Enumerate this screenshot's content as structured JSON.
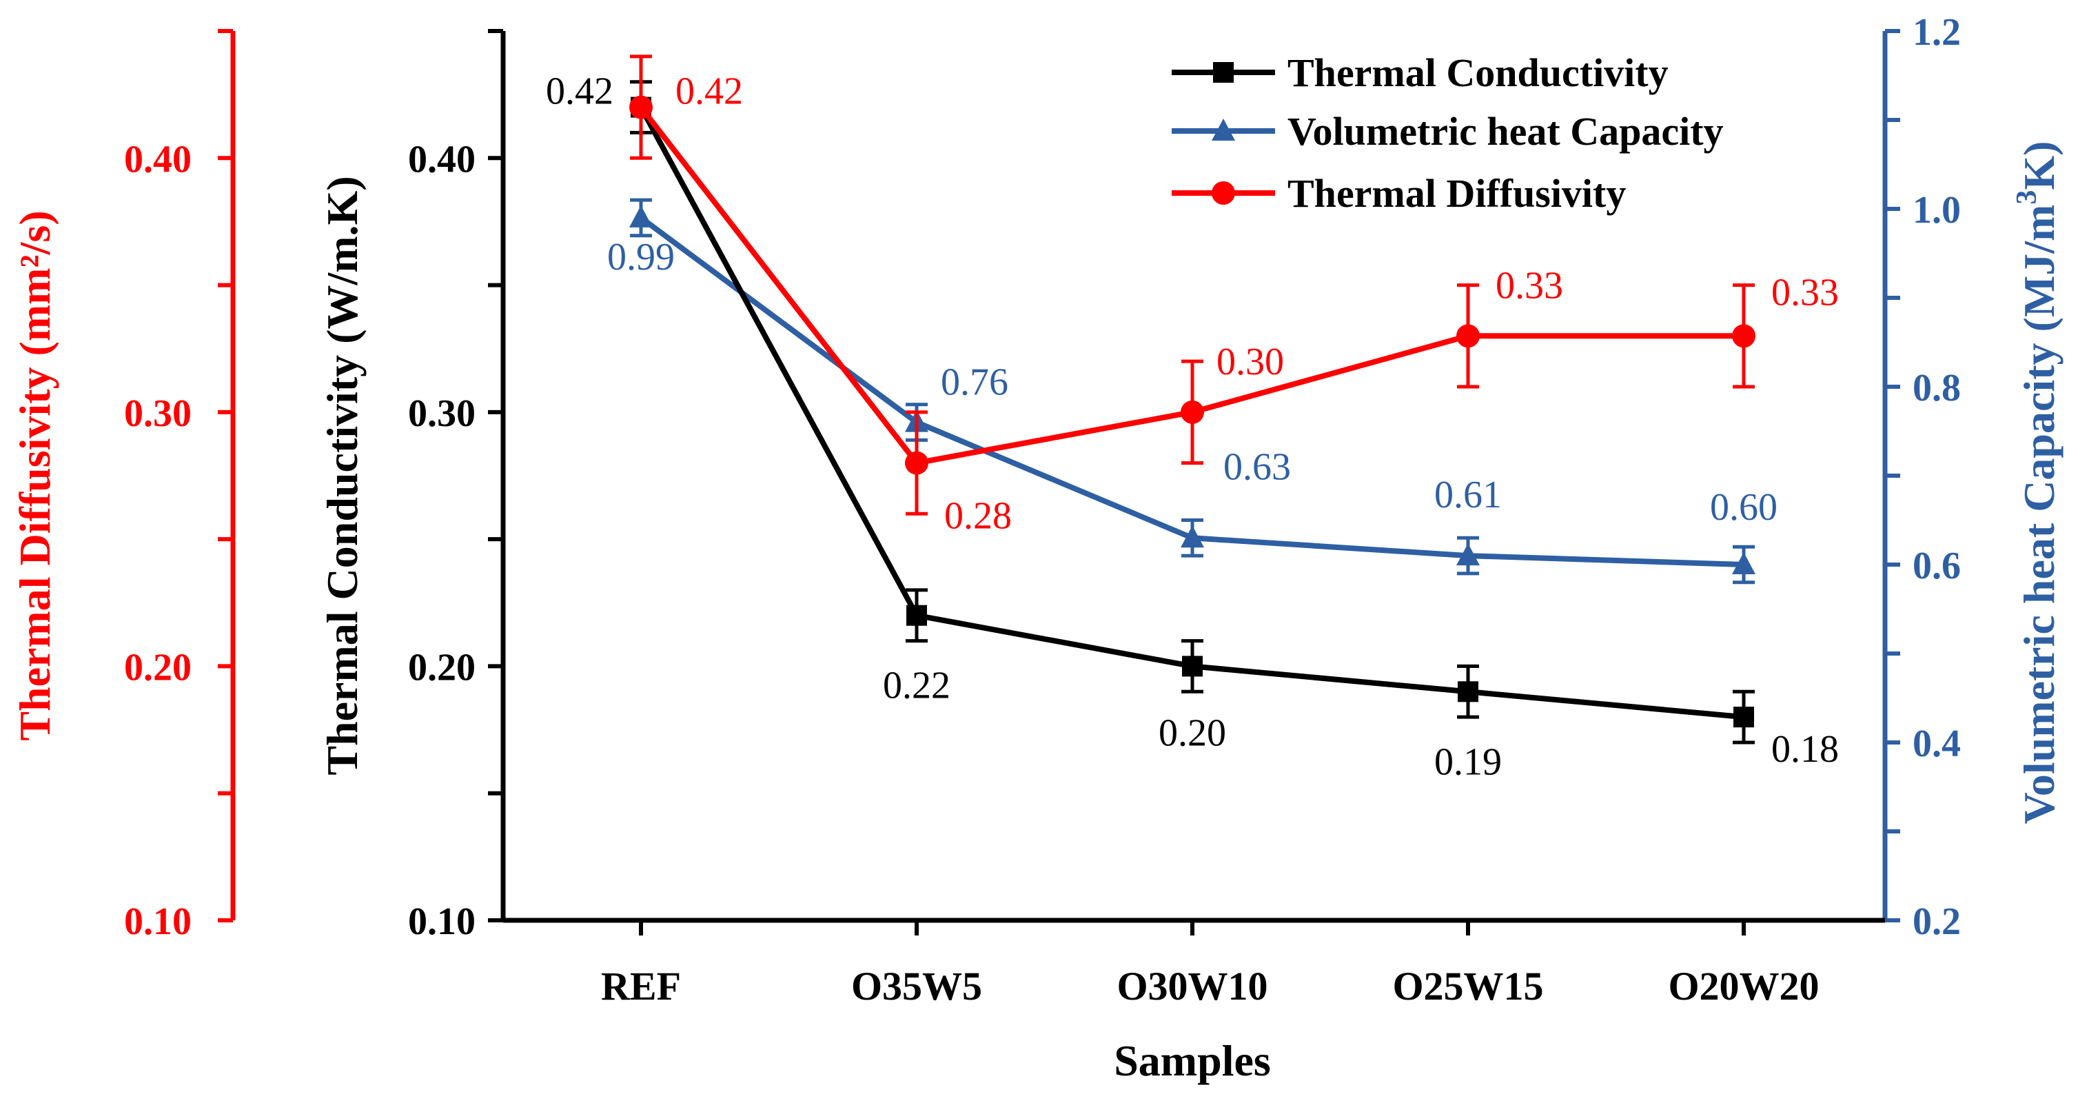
{
  "chart_data": {
    "type": "line",
    "xlabel": "Samples",
    "categories": [
      "REF",
      "O35W5",
      "O30W10",
      "O25W15",
      "O20W20"
    ],
    "axes": {
      "left_outer": {
        "label": "Thermal Diffusivity (mm²/s)",
        "range": [
          0.1,
          0.45
        ],
        "ticks": [
          "0.10",
          "0.20",
          "0.30",
          "0.40"
        ],
        "tick_values": [
          0.1,
          0.2,
          0.3,
          0.4
        ],
        "color": "#ff0000"
      },
      "left_inner": {
        "label": "Thermal Conductivity (W/m.K)",
        "range": [
          0.1,
          0.45
        ],
        "ticks": [
          "0.10",
          "0.20",
          "0.30",
          "0.40"
        ],
        "tick_values": [
          0.1,
          0.2,
          0.3,
          0.4
        ],
        "color": "#000000"
      },
      "right": {
        "label_prefix": "Volumetric heat Capacity (MJ/m",
        "label_sup": "3",
        "label_suffix": "K)",
        "range": [
          0.2,
          1.2
        ],
        "ticks": [
          "0.2",
          "0.4",
          "0.6",
          "0.8",
          "1.0",
          "1.2"
        ],
        "tick_values": [
          0.2,
          0.4,
          0.6,
          0.8,
          1.0,
          1.2
        ],
        "color": "#2e5fa3"
      }
    },
    "series": [
      {
        "name": "Thermal Conductivity",
        "axis": "left_inner",
        "color": "#000000",
        "marker": "square",
        "values": [
          0.42,
          0.22,
          0.2,
          0.19,
          0.18
        ],
        "errors": [
          0.01,
          0.01,
          0.01,
          0.01,
          0.01
        ],
        "labels": [
          "0.42",
          "0.22",
          "0.20",
          "0.19",
          "0.18"
        ]
      },
      {
        "name": "Volumetric heat Capacity",
        "axis": "right",
        "color": "#2e5fa3",
        "marker": "triangle",
        "values": [
          0.99,
          0.76,
          0.63,
          0.61,
          0.6
        ],
        "errors": [
          0.02,
          0.02,
          0.02,
          0.02,
          0.02
        ],
        "labels": [
          "0.99",
          "0.76",
          "0.63",
          "0.61",
          "0.60"
        ]
      },
      {
        "name": "Thermal Diffusivity",
        "axis": "left_outer",
        "color": "#ff0000",
        "marker": "circle",
        "values": [
          0.42,
          0.28,
          0.3,
          0.33,
          0.33
        ],
        "errors": [
          0.02,
          0.02,
          0.02,
          0.02,
          0.02
        ],
        "labels": [
          "0.42",
          "0.28",
          "0.30",
          "0.33",
          "0.33"
        ]
      }
    ],
    "legend": {
      "position": "top-right",
      "entries": [
        "Thermal Conductivity",
        "Volumetric heat Capacity",
        "Thermal Diffusivity"
      ]
    },
    "grid": false
  }
}
